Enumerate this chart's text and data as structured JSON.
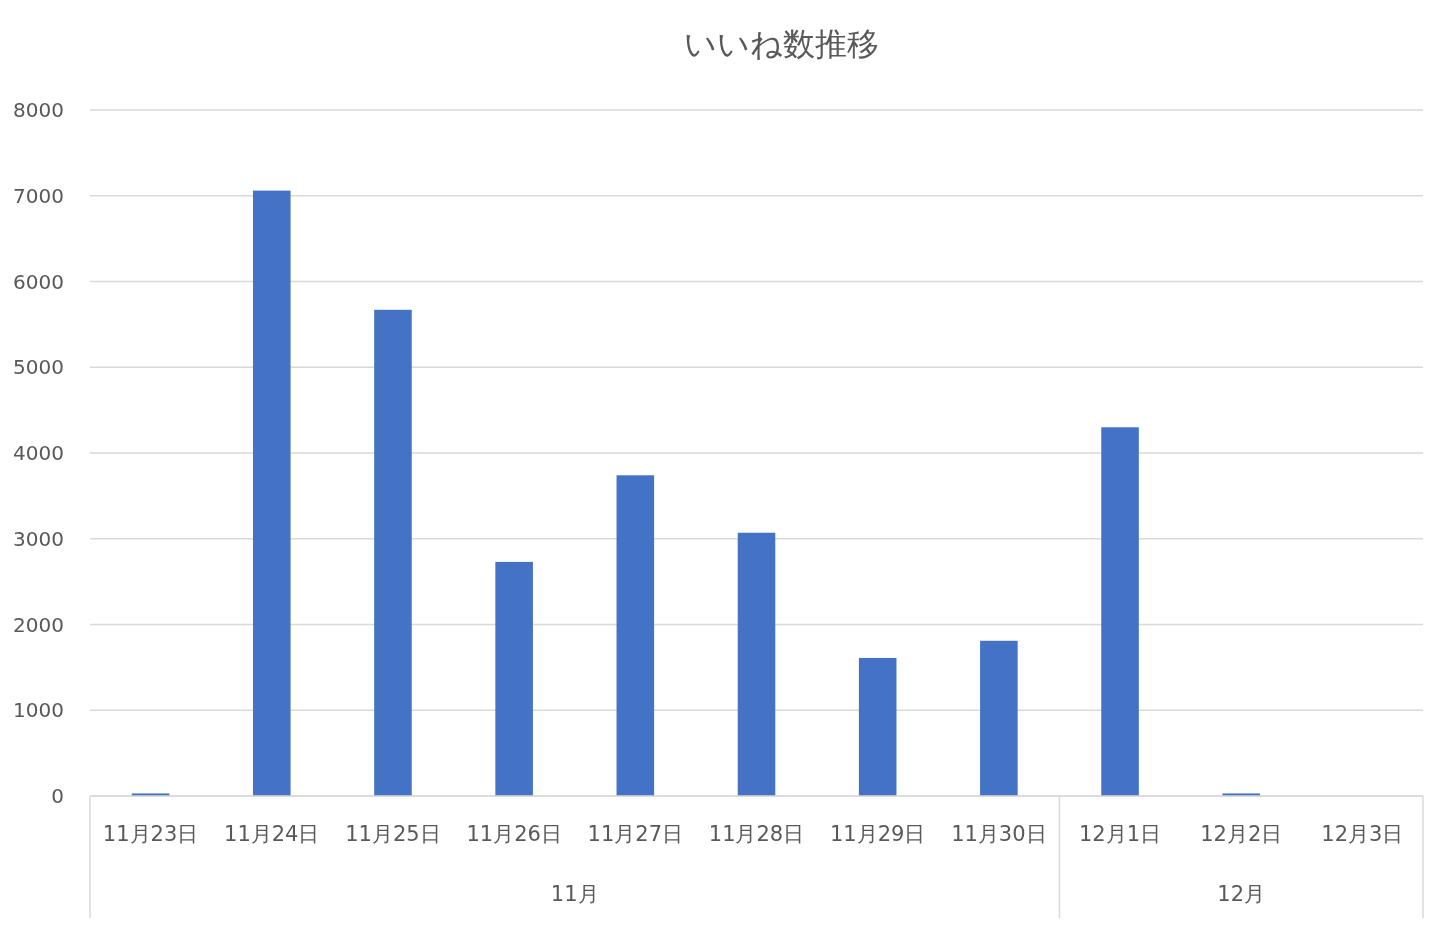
{
  "chart_data": {
    "type": "bar",
    "title": "いいね数推移",
    "categories": [
      "11月23日",
      "11月24日",
      "11月25日",
      "11月26日",
      "11月27日",
      "11月28日",
      "11月29日",
      "11月30日",
      "12月1日",
      "12月2日",
      "12月3日"
    ],
    "values": [
      30,
      7060,
      5670,
      2730,
      3740,
      3070,
      1610,
      1810,
      4300,
      30,
      0
    ],
    "color": "#4472c4",
    "ylim": [
      0,
      8000
    ],
    "yticks": [
      0,
      1000,
      2000,
      3000,
      4000,
      5000,
      6000,
      7000,
      8000
    ],
    "grid": "y",
    "annotations": [
      "11月",
      "12月"
    ]
  }
}
